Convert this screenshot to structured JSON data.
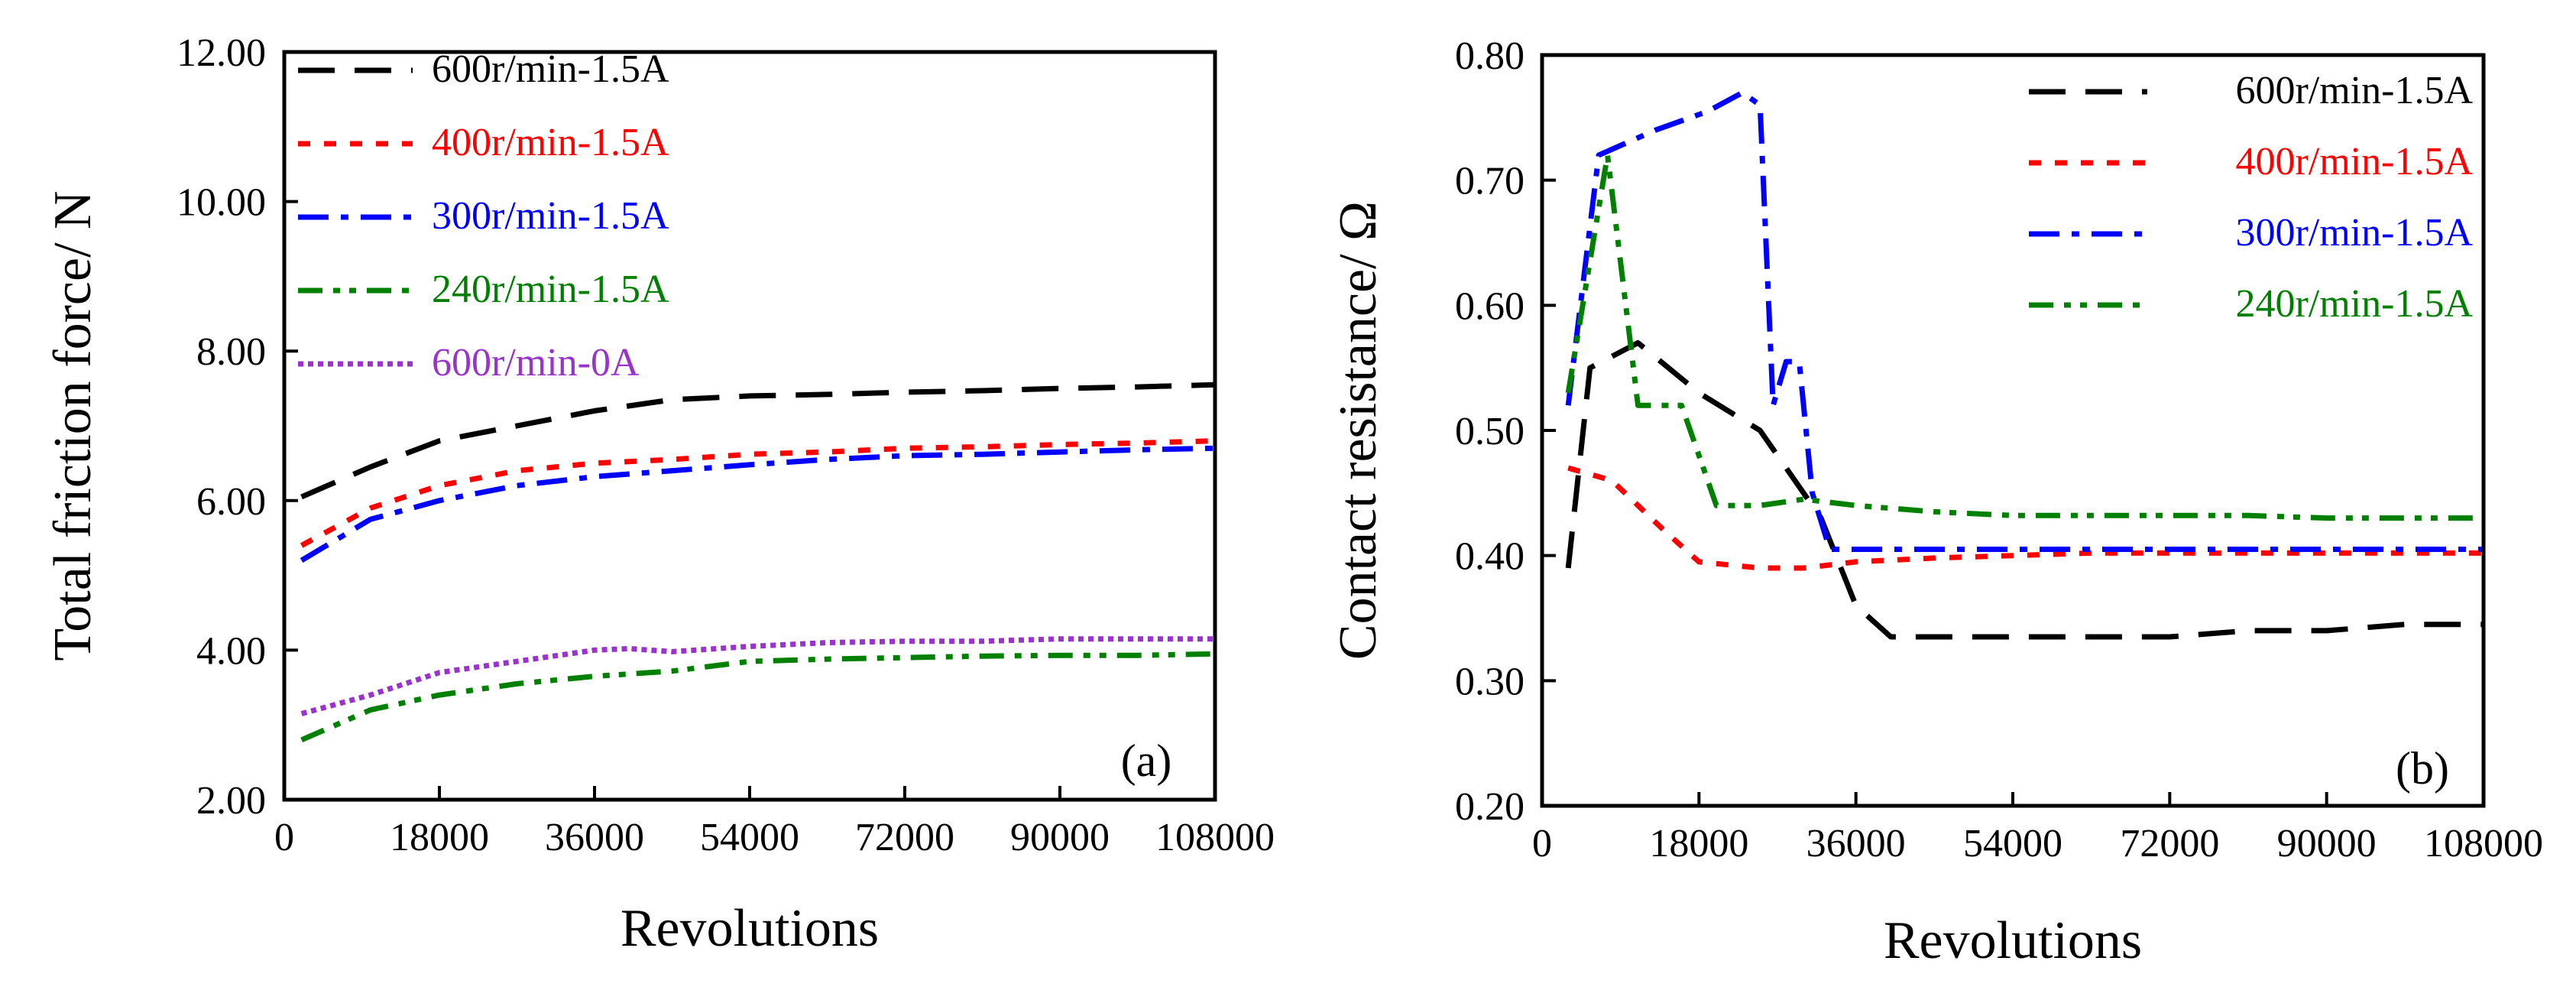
{
  "chart_data": [
    {
      "type": "line",
      "panel_label": "(a)",
      "xlabel": "Revolutions",
      "ylabel": "Total friction force/ N",
      "xlim": [
        0,
        108000
      ],
      "ylim": [
        2,
        12
      ],
      "xticks": [
        "0",
        "18000",
        "36000",
        "54000",
        "72000",
        "90000",
        "108000"
      ],
      "xtick_values": [
        0,
        18000,
        36000,
        54000,
        72000,
        90000,
        108000
      ],
      "yticks": [
        "2.00",
        "4.00",
        "6.00",
        "8.00",
        "10.00",
        "12.00"
      ],
      "ytick_values": [
        2,
        4,
        6,
        8,
        10,
        12
      ],
      "legend_position": "top-left",
      "series": [
        {
          "name": "600r/min-1.5A",
          "color": "#000000",
          "style": "dash",
          "x": [
            2000,
            10000,
            18000,
            27000,
            36000,
            45000,
            54000,
            63000,
            72000,
            81000,
            90000,
            99000,
            108000
          ],
          "y": [
            6.05,
            6.45,
            6.8,
            7.0,
            7.2,
            7.35,
            7.4,
            7.42,
            7.45,
            7.47,
            7.5,
            7.52,
            7.55
          ]
        },
        {
          "name": "400r/min-1.5A",
          "color": "#ff0000",
          "style": "dot",
          "x": [
            2000,
            10000,
            18000,
            27000,
            36000,
            45000,
            54000,
            63000,
            72000,
            81000,
            90000,
            99000,
            108000
          ],
          "y": [
            5.4,
            5.9,
            6.2,
            6.4,
            6.5,
            6.55,
            6.62,
            6.65,
            6.7,
            6.72,
            6.75,
            6.77,
            6.8
          ]
        },
        {
          "name": "300r/min-1.5A",
          "color": "#0000ff",
          "style": "dashdot",
          "x": [
            2000,
            10000,
            18000,
            27000,
            36000,
            45000,
            54000,
            63000,
            72000,
            81000,
            90000,
            99000,
            108000
          ],
          "y": [
            5.2,
            5.75,
            6.0,
            6.2,
            6.32,
            6.4,
            6.48,
            6.55,
            6.6,
            6.62,
            6.65,
            6.68,
            6.7
          ]
        },
        {
          "name": "240r/min-1.5A",
          "color": "#008000",
          "style": "dashdotdot",
          "x": [
            2000,
            10000,
            18000,
            27000,
            36000,
            45000,
            54000,
            63000,
            72000,
            81000,
            90000,
            99000,
            108000
          ],
          "y": [
            2.8,
            3.2,
            3.4,
            3.55,
            3.65,
            3.72,
            3.85,
            3.88,
            3.9,
            3.92,
            3.93,
            3.93,
            3.95
          ]
        },
        {
          "name": "600r/min-0A",
          "color": "#9933cc",
          "style": "shortdot",
          "x": [
            2000,
            10000,
            18000,
            27000,
            36000,
            40000,
            45000,
            54000,
            63000,
            72000,
            81000,
            90000,
            99000,
            108000
          ],
          "y": [
            3.15,
            3.4,
            3.7,
            3.85,
            4.0,
            4.02,
            3.98,
            4.05,
            4.1,
            4.12,
            4.12,
            4.15,
            4.15,
            4.15
          ]
        }
      ]
    },
    {
      "type": "line",
      "panel_label": "(b)",
      "xlabel": "Revolutions",
      "ylabel": "Contact resistance/ Ω",
      "xlim": [
        0,
        108000
      ],
      "ylim": [
        0.2,
        0.8
      ],
      "xticks": [
        "0",
        "18000",
        "36000",
        "54000",
        "72000",
        "90000",
        "108000"
      ],
      "xtick_values": [
        0,
        18000,
        36000,
        54000,
        72000,
        90000,
        108000
      ],
      "yticks": [
        "0.20",
        "0.30",
        "0.40",
        "0.50",
        "0.60",
        "0.70",
        "0.80"
      ],
      "ytick_values": [
        0.2,
        0.3,
        0.4,
        0.5,
        0.6,
        0.7,
        0.8
      ],
      "legend_position": "top-right",
      "series": [
        {
          "name": "600r/min-1.5A",
          "color": "#000000",
          "style": "dash",
          "x": [
            3000,
            5500,
            11000,
            18000,
            25000,
            32000,
            36000,
            40000,
            48000,
            54000,
            63000,
            72000,
            81000,
            90000,
            99000,
            108000
          ],
          "y": [
            0.39,
            0.55,
            0.57,
            0.53,
            0.5,
            0.43,
            0.36,
            0.335,
            0.335,
            0.335,
            0.335,
            0.335,
            0.34,
            0.34,
            0.345,
            0.345
          ]
        },
        {
          "name": "400r/min-1.5A",
          "color": "#ff0000",
          "style": "dot",
          "x": [
            3000,
            8000,
            14000,
            18000,
            25000,
            30000,
            36000,
            45000,
            54000,
            63000,
            72000,
            81000,
            90000,
            99000,
            108000
          ],
          "y": [
            0.47,
            0.46,
            0.42,
            0.395,
            0.39,
            0.39,
            0.395,
            0.398,
            0.4,
            0.402,
            0.402,
            0.402,
            0.402,
            0.402,
            0.402
          ]
        },
        {
          "name": "300r/min-1.5A",
          "color": "#0000ff",
          "style": "dashdot",
          "x": [
            3000,
            6500,
            13000,
            19000,
            23000,
            25000,
            26500,
            28000,
            29500,
            31000,
            33000,
            36000,
            45000,
            54000,
            63000,
            72000,
            81000,
            90000,
            99000,
            108000
          ],
          "y": [
            0.52,
            0.72,
            0.74,
            0.755,
            0.77,
            0.76,
            0.52,
            0.555,
            0.555,
            0.45,
            0.405,
            0.405,
            0.405,
            0.405,
            0.405,
            0.405,
            0.405,
            0.405,
            0.405,
            0.405
          ]
        },
        {
          "name": "240r/min-1.5A",
          "color": "#008000",
          "style": "dashdotdot",
          "x": [
            3000,
            7500,
            11000,
            16000,
            20000,
            25000,
            30000,
            36000,
            45000,
            54000,
            63000,
            72000,
            81000,
            90000,
            99000,
            108000
          ],
          "y": [
            0.53,
            0.72,
            0.52,
            0.52,
            0.44,
            0.44,
            0.445,
            0.44,
            0.435,
            0.432,
            0.432,
            0.432,
            0.432,
            0.43,
            0.43,
            0.43
          ]
        }
      ]
    }
  ]
}
